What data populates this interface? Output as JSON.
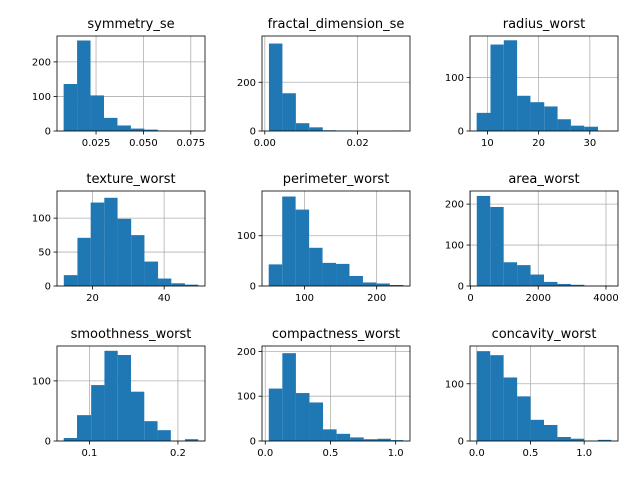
{
  "figure": {
    "background": "#ffffff",
    "bar_color": "#1f77b4",
    "grid_color": "#b0b0b0"
  },
  "chart_data": [
    {
      "type": "bar",
      "title": "symmetry_se",
      "bin_edges": [
        0.0079,
        0.015,
        0.0221,
        0.0292,
        0.0363,
        0.0434,
        0.0505,
        0.0576,
        0.0647,
        0.0718,
        0.079
      ],
      "values": [
        136,
        262,
        103,
        38,
        16,
        7,
        4,
        1,
        0,
        1
      ],
      "xlim": [
        0.0044,
        0.0825
      ],
      "ylim": [
        0,
        275
      ],
      "xticks": [
        0.025,
        0.05,
        0.075
      ],
      "xtick_labels": [
        "0.025",
        "0.050",
        "0.075"
      ],
      "yticks": [
        0,
        100,
        200
      ],
      "ytick_labels": [
        "0",
        "100",
        "200"
      ],
      "grid": true
    },
    {
      "type": "bar",
      "title": "fractal_dimension_se",
      "bin_edges": [
        0.0009,
        0.0038,
        0.0067,
        0.0096,
        0.0125,
        0.0154,
        0.0183,
        0.0212,
        0.0241,
        0.027,
        0.0299
      ],
      "values": [
        359,
        155,
        32,
        15,
        3,
        2,
        1,
        0,
        0,
        2
      ],
      "xlim": [
        -0.0006,
        0.0313
      ],
      "ylim": [
        0,
        390
      ],
      "xticks": [
        0,
        0.02
      ],
      "xtick_labels": [
        "0.00",
        "0.02"
      ],
      "yticks": [
        0,
        200
      ],
      "ytick_labels": [
        "0",
        "200"
      ],
      "grid": true
    },
    {
      "type": "bar",
      "title": "radius_worst",
      "bin_edges": [
        7.9,
        10.6,
        13.2,
        15.8,
        18.4,
        21.1,
        23.7,
        26.3,
        28.9,
        31.6,
        34.2
      ],
      "values": [
        34,
        162,
        170,
        66,
        54,
        46,
        22,
        10,
        8,
        0
      ],
      "xlim": [
        6.6,
        35.5
      ],
      "ylim": [
        0,
        178
      ],
      "xticks": [
        10,
        20,
        30
      ],
      "xtick_labels": [
        "10",
        "20",
        "30"
      ],
      "yticks": [
        0,
        100
      ],
      "ytick_labels": [
        "0",
        "100"
      ],
      "grid": true
    },
    {
      "type": "bar",
      "title": "texture_worst",
      "bin_edges": [
        12.0,
        15.8,
        19.5,
        23.3,
        27.0,
        30.8,
        34.5,
        38.3,
        42.0,
        45.8,
        49.5
      ],
      "values": [
        16,
        71,
        123,
        130,
        99,
        75,
        36,
        11,
        4,
        2
      ],
      "xlim": [
        10.1,
        51.4
      ],
      "ylim": [
        0,
        140
      ],
      "xticks": [
        20,
        40
      ],
      "xtick_labels": [
        "20",
        "40"
      ],
      "yticks": [
        0,
        50,
        100
      ],
      "ytick_labels": [
        "0",
        "50",
        "100"
      ],
      "grid": true
    },
    {
      "type": "bar",
      "title": "perimeter_worst",
      "bin_edges": [
        50.4,
        69.1,
        87.7,
        106.4,
        125.0,
        143.7,
        162.3,
        181.0,
        199.6,
        218.3,
        236.9
      ],
      "values": [
        43,
        178,
        152,
        76,
        46,
        44,
        20,
        7,
        5,
        2
      ],
      "xlim": [
        41.1,
        246.2
      ],
      "ylim": [
        0,
        189
      ],
      "xticks": [
        100,
        200
      ],
      "xtick_labels": [
        "100",
        "200"
      ],
      "yticks": [
        0,
        100
      ],
      "ytick_labels": [
        "0",
        "100"
      ],
      "grid": true
    },
    {
      "type": "bar",
      "title": "area_worst",
      "bin_edges": [
        185,
        582,
        979,
        1376,
        1773,
        2170,
        2567,
        2964,
        3361,
        3758,
        4155
      ],
      "values": [
        220,
        193,
        58,
        51,
        28,
        10,
        5,
        3,
        0,
        1
      ],
      "xlim": [
        -15,
        4355
      ],
      "ylim": [
        0,
        232
      ],
      "xticks": [
        0,
        2000,
        4000
      ],
      "xtick_labels": [
        "0",
        "2000",
        "4000"
      ],
      "yticks": [
        0,
        100,
        200
      ],
      "ytick_labels": [
        "0",
        "100",
        "200"
      ],
      "grid": true
    },
    {
      "type": "bar",
      "title": "smoothness_worst",
      "bin_edges": [
        0.071,
        0.086,
        0.102,
        0.117,
        0.132,
        0.147,
        0.162,
        0.177,
        0.192,
        0.208,
        0.223
      ],
      "values": [
        5,
        43,
        93,
        150,
        143,
        82,
        33,
        18,
        0,
        3
      ],
      "xlim": [
        0.0634,
        0.2306
      ],
      "ylim": [
        0,
        158
      ],
      "xticks": [
        0.1,
        0.2
      ],
      "xtick_labels": [
        "0.1",
        "0.2"
      ],
      "yticks": [
        0,
        100
      ],
      "ytick_labels": [
        "0",
        "100"
      ],
      "grid": true
    },
    {
      "type": "bar",
      "title": "compactness_worst",
      "bin_edges": [
        0.027,
        0.131,
        0.235,
        0.339,
        0.443,
        0.547,
        0.651,
        0.755,
        0.859,
        0.963,
        1.058
      ],
      "values": [
        117,
        196,
        107,
        86,
        26,
        16,
        8,
        4,
        5,
        2
      ],
      "xlim": [
        -0.025,
        1.11
      ],
      "ylim": [
        0,
        212
      ],
      "xticks": [
        0,
        0.5,
        1
      ],
      "xtick_labels": [
        "0.0",
        "0.5",
        "1.0"
      ],
      "yticks": [
        0,
        100,
        200
      ],
      "ytick_labels": [
        "0",
        "100",
        "200"
      ],
      "grid": true
    },
    {
      "type": "bar",
      "title": "concavity_worst",
      "bin_edges": [
        0,
        0.125,
        0.25,
        0.376,
        0.501,
        0.626,
        0.751,
        0.876,
        1.002,
        1.127,
        1.252
      ],
      "values": [
        157,
        150,
        111,
        78,
        37,
        28,
        7,
        4,
        0,
        2
      ],
      "xlim": [
        -0.063,
        1.315
      ],
      "ylim": [
        0,
        166
      ],
      "xticks": [
        0,
        0.5,
        1
      ],
      "xtick_labels": [
        "0.0",
        "0.5",
        "1.0"
      ],
      "yticks": [
        0,
        100
      ],
      "ytick_labels": [
        "0",
        "100"
      ],
      "grid": true
    }
  ]
}
